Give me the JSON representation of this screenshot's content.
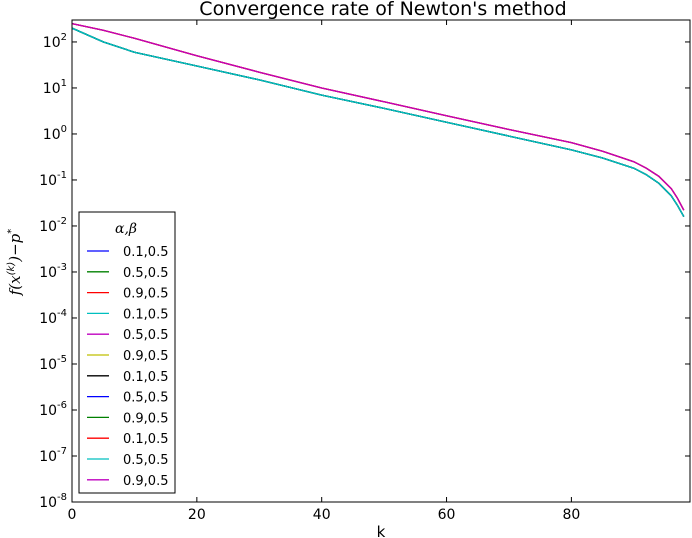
{
  "chart_data": {
    "type": "line",
    "title": "Convergence rate of Newton's method",
    "xlabel": "k",
    "ylabel": "f(x^(k))−p^*",
    "xlim": [
      0,
      99
    ],
    "ylim": [
      1e-08,
      300
    ],
    "yscale": "log",
    "grid": false,
    "legend": {
      "title": "α,β",
      "position": "lower-left"
    },
    "xticks": [
      "0",
      "20",
      "40",
      "60",
      "80"
    ],
    "xtick_values": [
      0,
      20,
      40,
      60,
      80
    ],
    "yticks": [
      {
        "base": "10",
        "exp": "2",
        "value": 100
      },
      {
        "base": "10",
        "exp": "1",
        "value": 10
      },
      {
        "base": "10",
        "exp": "0",
        "value": 1
      },
      {
        "base": "10",
        "exp": "-1",
        "value": 0.1
      },
      {
        "base": "10",
        "exp": "-2",
        "value": 0.01
      },
      {
        "base": "10",
        "exp": "-3",
        "value": 0.001
      },
      {
        "base": "10",
        "exp": "-4",
        "value": 0.0001
      },
      {
        "base": "10",
        "exp": "-5",
        "value": 1e-05
      },
      {
        "base": "10",
        "exp": "-6",
        "value": 1e-06
      },
      {
        "base": "10",
        "exp": "-7",
        "value": 1e-07
      },
      {
        "base": "10",
        "exp": "-8",
        "value": 1e-08
      }
    ],
    "x": [
      0,
      5,
      10,
      20,
      30,
      40,
      50,
      60,
      70,
      80,
      85,
      90,
      92,
      94,
      96,
      97,
      98
    ],
    "series": [
      {
        "name": "0.1,0.5",
        "color": "#0000ff",
        "values": [
          200,
          100,
          60,
          30,
          15,
          7,
          3.6,
          1.8,
          0.9,
          0.45,
          0.3,
          0.18,
          0.13,
          0.085,
          0.045,
          0.028,
          0.016
        ]
      },
      {
        "name": "0.5,0.5",
        "color": "#008000",
        "values": [
          200,
          100,
          60,
          30,
          15,
          7,
          3.6,
          1.8,
          0.9,
          0.45,
          0.3,
          0.18,
          0.13,
          0.085,
          0.045,
          0.028,
          0.016
        ]
      },
      {
        "name": "0.9,0.5",
        "color": "#ff0000",
        "values": [
          250,
          180,
          120,
          50,
          22,
          10,
          5,
          2.5,
          1.25,
          0.65,
          0.42,
          0.25,
          0.18,
          0.12,
          0.065,
          0.04,
          0.022
        ]
      },
      {
        "name": "0.1,0.5",
        "color": "#00bfbf",
        "values": [
          200,
          100,
          60,
          30,
          15,
          7,
          3.6,
          1.8,
          0.9,
          0.45,
          0.3,
          0.18,
          0.13,
          0.085,
          0.045,
          0.028,
          0.016
        ]
      },
      {
        "name": "0.5,0.5",
        "color": "#bf00bf",
        "values": [
          250,
          180,
          120,
          50,
          22,
          10,
          5,
          2.5,
          1.25,
          0.65,
          0.42,
          0.25,
          0.18,
          0.12,
          0.065,
          0.04,
          0.022
        ]
      },
      {
        "name": "0.9,0.5",
        "color": "#bfbf00",
        "values": [
          250,
          180,
          120,
          50,
          22,
          10,
          5,
          2.5,
          1.25,
          0.65,
          0.42,
          0.25,
          0.18,
          0.12,
          0.065,
          0.04,
          0.022
        ]
      },
      {
        "name": "0.1,0.5",
        "color": "#000000",
        "values": [
          200,
          100,
          60,
          30,
          15,
          7,
          3.6,
          1.8,
          0.9,
          0.45,
          0.3,
          0.18,
          0.13,
          0.085,
          0.045,
          0.028,
          0.016
        ]
      },
      {
        "name": "0.5,0.5",
        "color": "#0000ff",
        "values": [
          200,
          100,
          60,
          30,
          15,
          7,
          3.6,
          1.8,
          0.9,
          0.45,
          0.3,
          0.18,
          0.13,
          0.085,
          0.045,
          0.028,
          0.016
        ]
      },
      {
        "name": "0.9,0.5",
        "color": "#008000",
        "values": [
          200,
          100,
          60,
          30,
          15,
          7,
          3.6,
          1.8,
          0.9,
          0.45,
          0.3,
          0.18,
          0.13,
          0.085,
          0.045,
          0.028,
          0.016
        ]
      },
      {
        "name": "0.1,0.5",
        "color": "#ff0000",
        "values": [
          250,
          180,
          120,
          50,
          22,
          10,
          5,
          2.5,
          1.25,
          0.65,
          0.42,
          0.25,
          0.18,
          0.12,
          0.065,
          0.04,
          0.022
        ]
      },
      {
        "name": "0.5,0.5",
        "color": "#00bfbf",
        "values": [
          200,
          100,
          60,
          30,
          15,
          7,
          3.6,
          1.8,
          0.9,
          0.45,
          0.3,
          0.18,
          0.13,
          0.085,
          0.045,
          0.028,
          0.016
        ]
      },
      {
        "name": "0.9,0.5",
        "color": "#bf00bf",
        "values": [
          250,
          180,
          120,
          50,
          22,
          10,
          5,
          2.5,
          1.25,
          0.65,
          0.42,
          0.25,
          0.18,
          0.12,
          0.065,
          0.04,
          0.022
        ]
      }
    ]
  }
}
